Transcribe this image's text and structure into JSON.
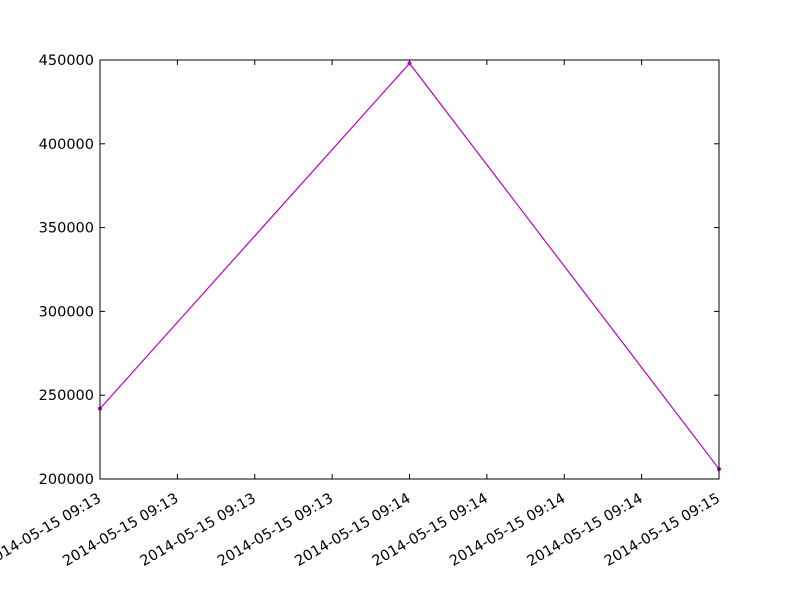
{
  "chart_data": {
    "type": "line",
    "title": "",
    "xlabel": "",
    "ylabel": "",
    "x_tick_labels": [
      "2014-05-15 09:13",
      "2014-05-15 09:13",
      "2014-05-15 09:13",
      "2014-05-15 09:13",
      "2014-05-15 09:14",
      "2014-05-15 09:14",
      "2014-05-15 09:14",
      "2014-05-15 09:14",
      "2014-05-15 09:15"
    ],
    "y_tick_labels": [
      "200000",
      "250000",
      "300000",
      "350000",
      "400000",
      "450000"
    ],
    "y_ticks": [
      200000,
      250000,
      300000,
      350000,
      400000,
      450000
    ],
    "ylim": [
      200000,
      450000
    ],
    "xlim": [
      "2014-05-15 09:13",
      "2014-05-15 09:15"
    ],
    "series": [
      {
        "x": [
          "2014-05-15 09:13",
          "2014-05-15 09:14",
          "2014-05-15 09:15"
        ],
        "values": [
          242000,
          448000,
          206000
        ],
        "color": "#bf00bf"
      }
    ],
    "grid": false,
    "legend": "none"
  }
}
